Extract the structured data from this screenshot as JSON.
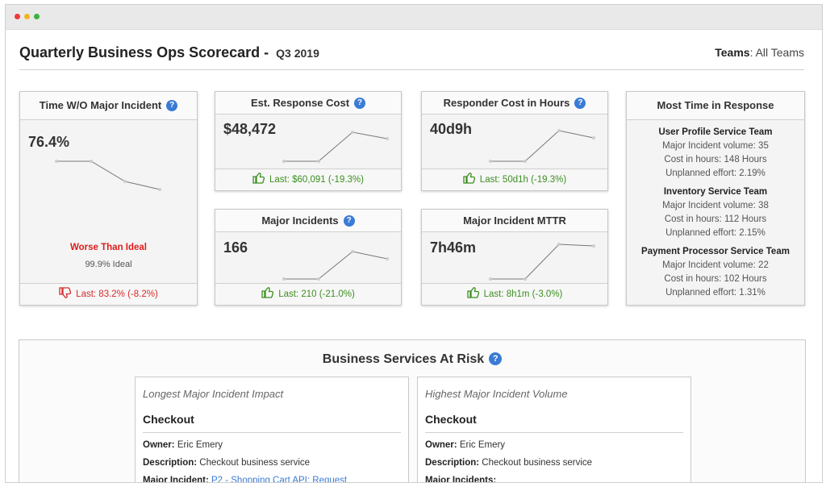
{
  "header": {
    "title": "Quarterly Business Ops Scorecard -",
    "quarter": "Q3 2019",
    "teams_label": "Teams",
    "teams_value": ": All Teams"
  },
  "cards": {
    "time_wo_incident": {
      "title": "Time W/O Major Incident",
      "value": "76.4%",
      "status": "Worse Than Ideal",
      "ideal": "99.9% Ideal",
      "last": "Last: 83.2%  (-8.2%)",
      "trend": "down"
    },
    "response_cost": {
      "title": "Est. Response Cost",
      "value": "$48,472",
      "last": "Last: $60,091  (-19.3%)",
      "trend": "up"
    },
    "responder_hours": {
      "title": "Responder Cost in Hours",
      "value": "40d9h",
      "last": "Last: 50d1h  (-19.3%)",
      "trend": "up"
    },
    "major_incidents": {
      "title": "Major Incidents",
      "value": "166",
      "last": "Last: 210  (-21.0%)",
      "trend": "up"
    },
    "mttr": {
      "title": "Major Incident MTTR",
      "value": "7h46m",
      "last": "Last: 8h1m  (-3.0%)",
      "trend": "up"
    },
    "most_time": {
      "title": "Most Time in Response",
      "teams": [
        {
          "name": "User Profile Service Team",
          "volume": "Major Incident volume: 35",
          "cost": "Cost in hours: 148 Hours",
          "effort": "Unplanned effort: 2.19%"
        },
        {
          "name": "Inventory Service Team",
          "volume": "Major Incident volume: 38",
          "cost": "Cost in hours: 112 Hours",
          "effort": "Unplanned effort: 2.15%"
        },
        {
          "name": "Payment Processor Service Team",
          "volume": "Major Incident volume: 22",
          "cost": "Cost in hours: 102 Hours",
          "effort": "Unplanned effort: 1.31%"
        }
      ]
    }
  },
  "business_services": {
    "title": "Business Services At Risk",
    "left": {
      "subtitle": "Longest Major Incident Impact",
      "name": "Checkout",
      "owner_label": "Owner:",
      "owner": " Eric Emery",
      "desc_label": "Description:",
      "desc": " Checkout business service",
      "incident_label": "Major Incident:",
      "incident": " P2 - Shopping Cart API: Request"
    },
    "right": {
      "subtitle": "Highest Major Incident Volume",
      "name": "Checkout",
      "owner_label": "Owner:",
      "owner": " Eric Emery",
      "desc_label": "Description:",
      "desc": " Checkout business service",
      "incident_label": "Major Incidents:"
    }
  },
  "icons": {
    "help": "question-circle-icon",
    "thumbs_up": "thumbs-up-icon",
    "thumbs_down": "thumbs-down-icon"
  },
  "colors": {
    "good": "#3b8f1f",
    "bad": "#d62b2b",
    "help": "#3a7bd5"
  }
}
